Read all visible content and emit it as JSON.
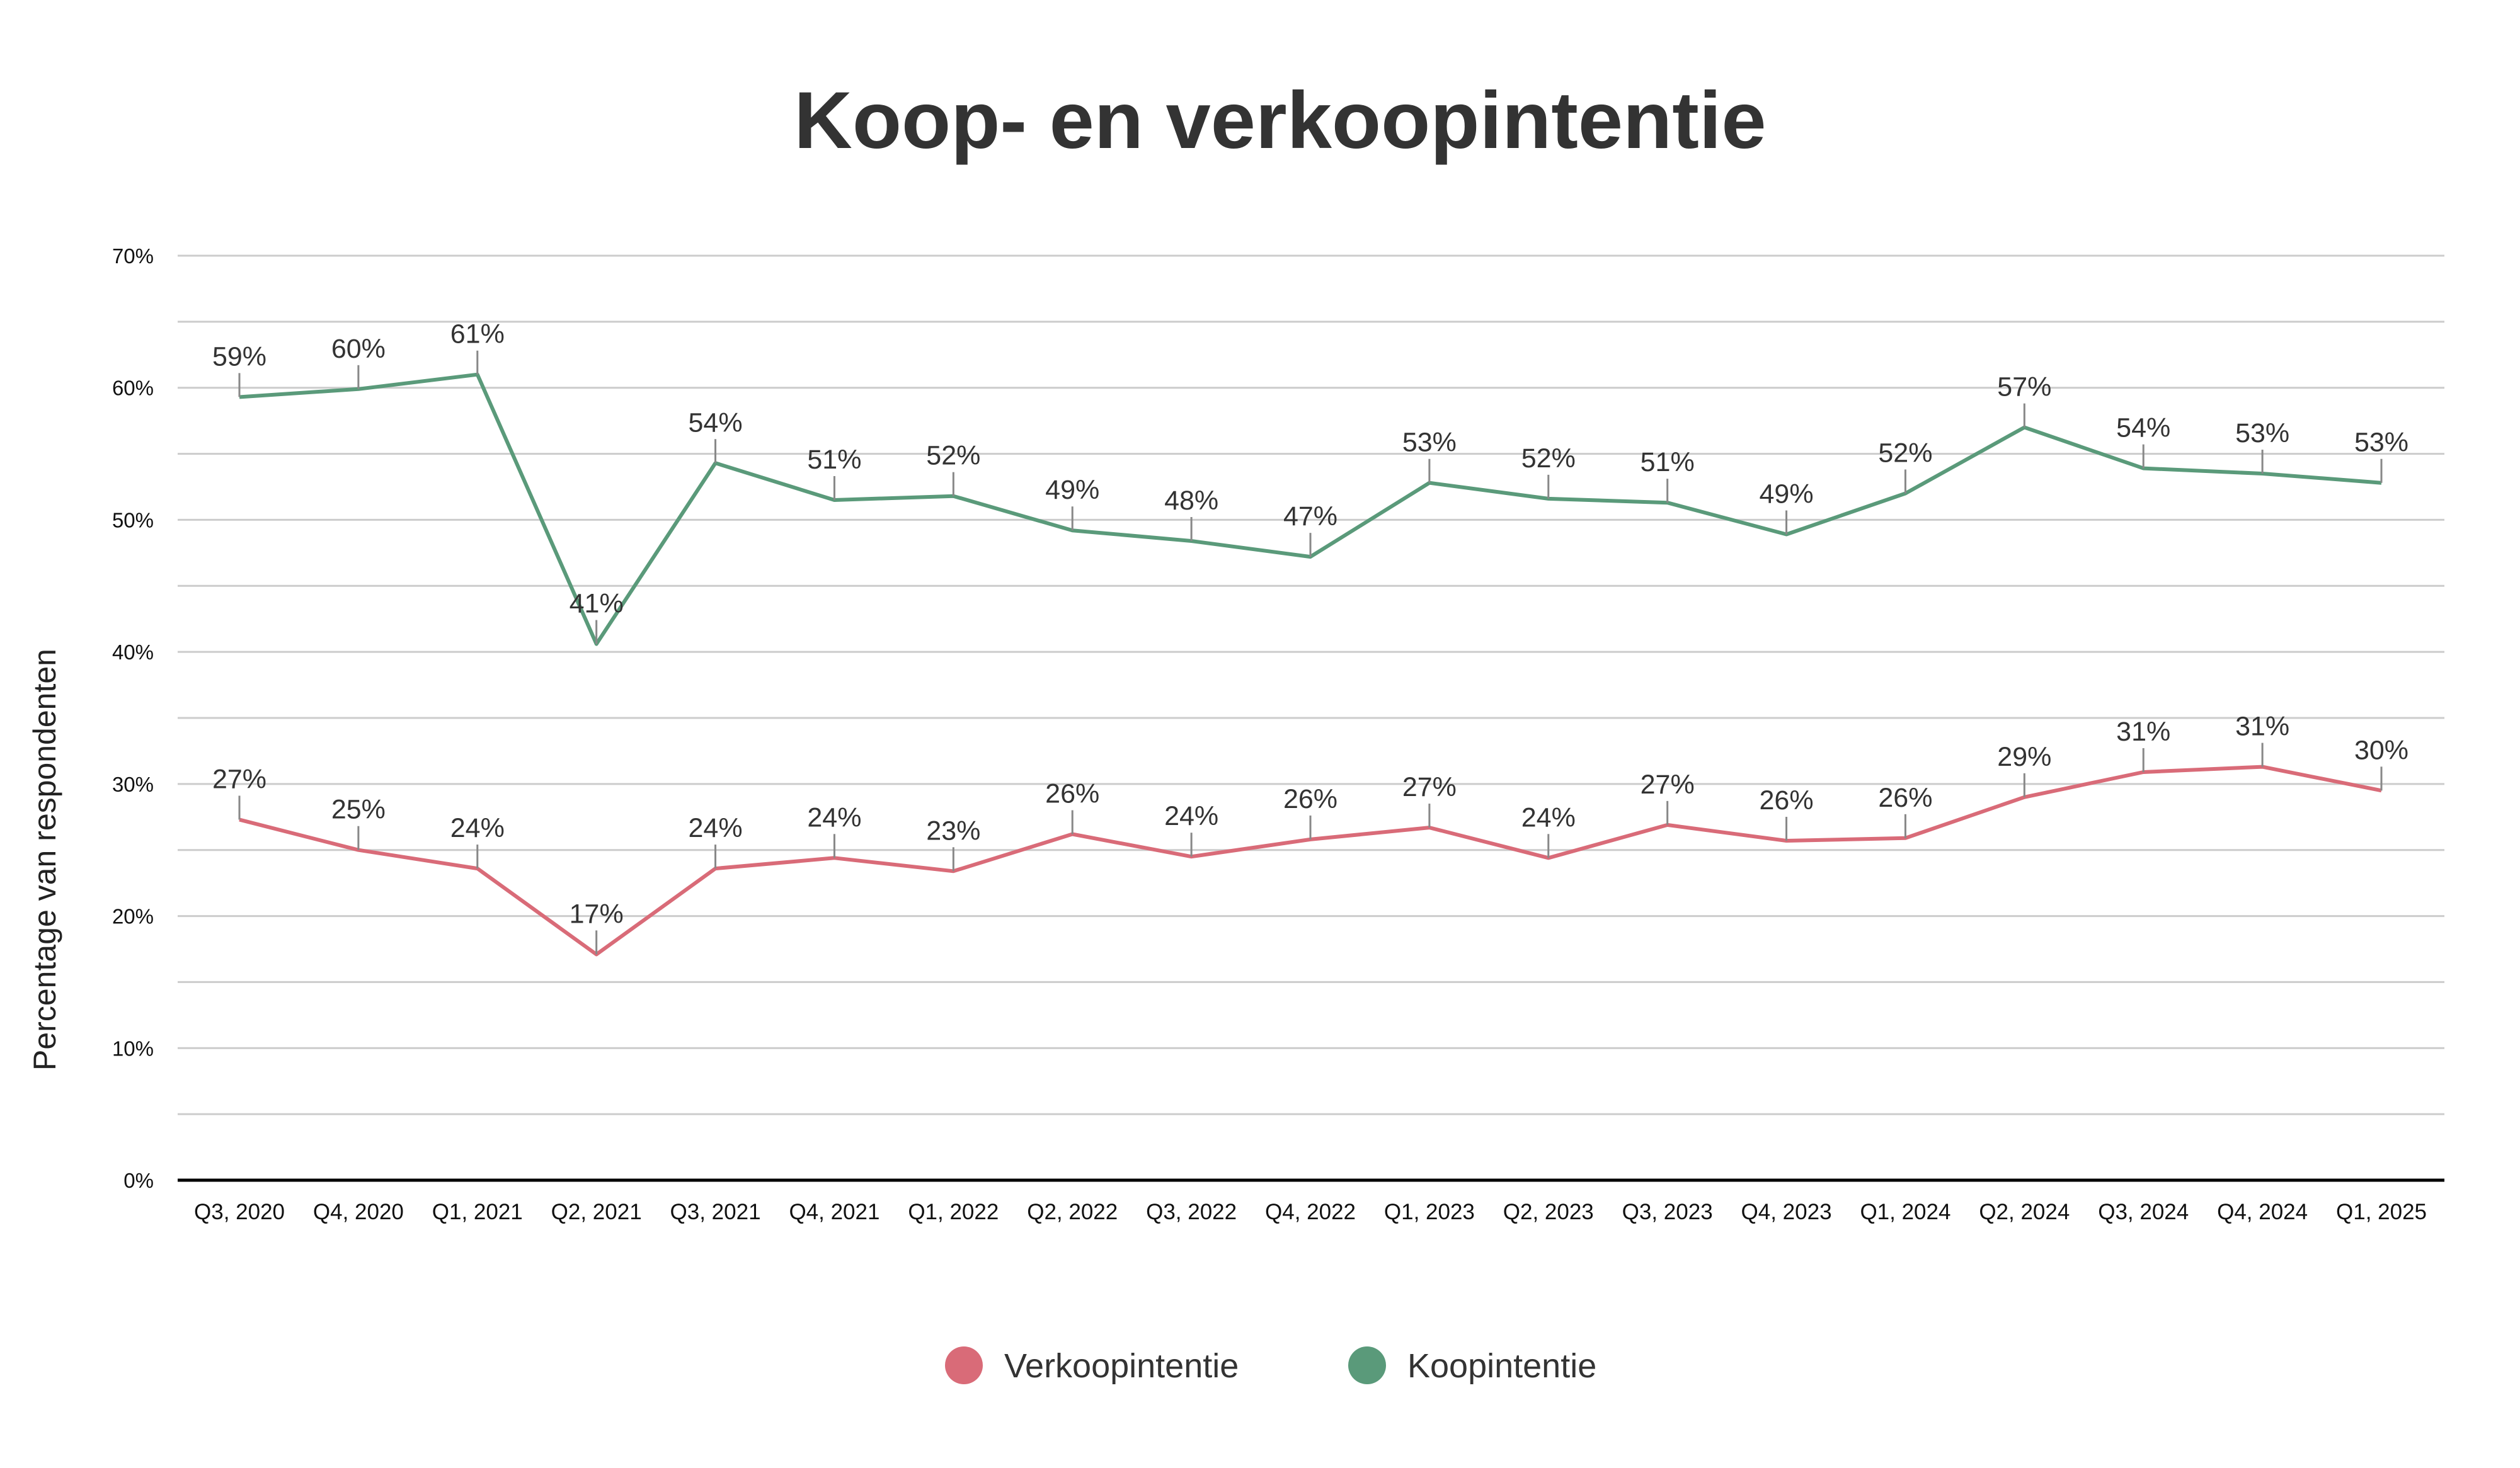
{
  "chart_data": {
    "type": "line",
    "title": "Koop- en verkoopintentie",
    "xlabel": "",
    "ylabel": "Percentage van respondenten",
    "ylim": [
      0,
      70
    ],
    "yticks": [
      "0%",
      "10%",
      "20%",
      "30%",
      "40%",
      "50%",
      "60%",
      "70%"
    ],
    "categories": [
      "Q3, 2020",
      "Q4, 2020",
      "Q1, 2021",
      "Q2, 2021",
      "Q3, 2021",
      "Q4, 2021",
      "Q1, 2022",
      "Q2, 2022",
      "Q3, 2022",
      "Q4, 2022",
      "Q1, 2023",
      "Q2, 2023",
      "Q3, 2023",
      "Q4, 2023",
      "Q1, 2024",
      "Q2, 2024",
      "Q3, 2024",
      "Q4, 2024",
      "Q1, 2025"
    ],
    "series": [
      {
        "name": "Verkoopintentie",
        "color": "#d96b78",
        "values": [
          27.3,
          25.0,
          23.6,
          17.1,
          23.6,
          24.4,
          23.4,
          26.2,
          24.5,
          25.8,
          26.7,
          24.4,
          26.9,
          25.7,
          25.9,
          29.0,
          30.9,
          31.3,
          29.5
        ],
        "labels": [
          "27%",
          "25%",
          "24%",
          "17%",
          "24%",
          "24%",
          "23%",
          "26%",
          "24%",
          "26%",
          "27%",
          "24%",
          "27%",
          "26%",
          "26%",
          "29%",
          "31%",
          "31%",
          "30%"
        ]
      },
      {
        "name": "Koopintentie",
        "color": "#5a9a7a",
        "values": [
          59.3,
          59.9,
          61.0,
          40.6,
          54.3,
          51.5,
          51.8,
          49.2,
          48.4,
          47.2,
          52.8,
          51.6,
          51.3,
          48.9,
          52.0,
          57.0,
          53.9,
          53.5,
          52.8
        ],
        "labels": [
          "59%",
          "60%",
          "61%",
          "41%",
          "54%",
          "51%",
          "52%",
          "49%",
          "48%",
          "47%",
          "53%",
          "52%",
          "51%",
          "49%",
          "52%",
          "57%",
          "54%",
          "53%",
          "53%"
        ]
      }
    ],
    "legend": {
      "position": "bottom"
    },
    "grid": true
  }
}
